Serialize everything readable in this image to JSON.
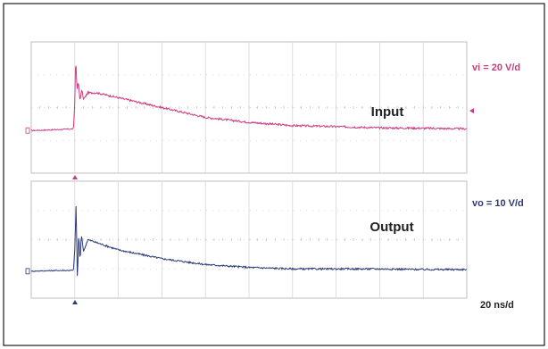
{
  "chart_data": [
    {
      "type": "line",
      "panel": "top",
      "title": "Input",
      "scale_label": "vi = 20 V/d",
      "time_scale": "",
      "grid": true,
      "divisions": {
        "x": 10,
        "y": 4
      },
      "color": "#cc3d7e",
      "series": [
        {
          "x": [
            0,
            0.45,
            0.97,
            1.0,
            1.02,
            1.05,
            1.08,
            1.12,
            1.16,
            1.2,
            1.3,
            1.5,
            2.0,
            3.0,
            4.0,
            5.0,
            6.0,
            7.0,
            8.0,
            9.0,
            10.0
          ],
          "y": [
            -0.7,
            -0.68,
            -0.65,
            0.2,
            1.6,
            0.5,
            0.8,
            0.2,
            0.55,
            0.25,
            0.45,
            0.45,
            0.3,
            0.0,
            -0.3,
            -0.45,
            -0.55,
            -0.58,
            -0.62,
            -0.63,
            -0.65
          ]
        }
      ]
    },
    {
      "type": "line",
      "panel": "bottom",
      "title": "Output",
      "scale_label": "vo = 10 V/d",
      "time_scale": "20 ns/d",
      "grid": true,
      "divisions": {
        "x": 10,
        "y": 4
      },
      "color": "#2c3a78",
      "series": [
        {
          "x": [
            0,
            0.45,
            0.97,
            1.0,
            1.03,
            1.06,
            1.09,
            1.12,
            1.15,
            1.2,
            1.3,
            1.5,
            2.0,
            3.0,
            4.0,
            5.0,
            6.0,
            7.0,
            8.0,
            9.0,
            10.0
          ],
          "y": [
            -1.08,
            -1.06,
            -1.05,
            -0.3,
            1.2,
            -1.5,
            0.3,
            -0.8,
            0.2,
            -0.4,
            0.0,
            -0.1,
            -0.35,
            -0.65,
            -0.85,
            -0.95,
            -1.0,
            -1.0,
            -1.0,
            -1.02,
            -1.02
          ]
        }
      ]
    }
  ]
}
